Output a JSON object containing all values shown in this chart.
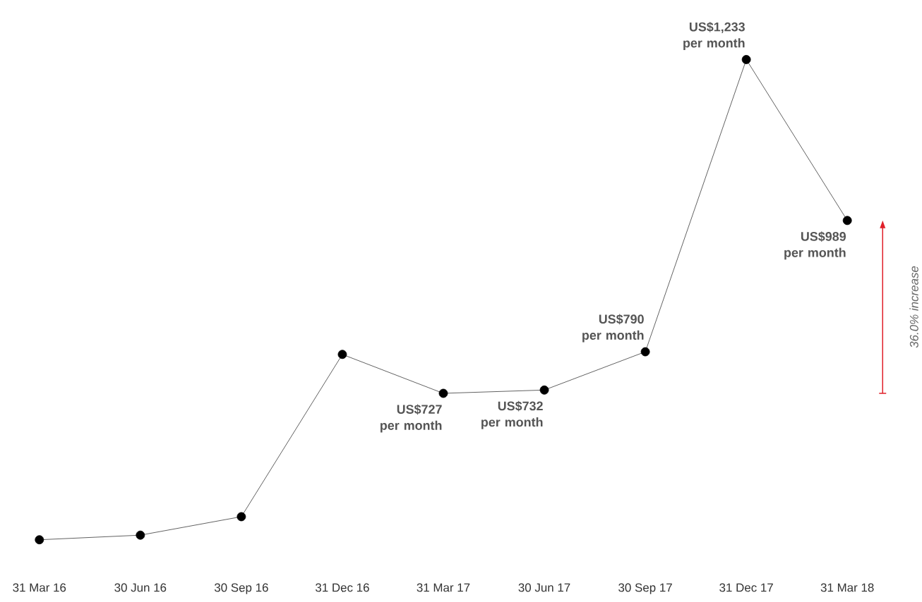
{
  "chart_data": {
    "type": "line",
    "categories": [
      "31 Mar 16",
      "30 Jun 16",
      "30 Sep 16",
      "31 Dec 16",
      "31 Mar 17",
      "30 Jun 17",
      "30 Sep 17",
      "31 Dec 17",
      "31 Mar 18"
    ],
    "values": [
      505,
      512,
      540,
      786,
      727,
      732,
      790,
      1233,
      989
    ],
    "value_labels": [
      null,
      null,
      null,
      null,
      "US$727 per month",
      "US$732 per month",
      "US$790 per month",
      "US$1,233 per month",
      "US$989 per month"
    ],
    "color": "#3a3a3a",
    "marker": "circle",
    "annotations": [
      "36.0% increase"
    ]
  }
}
